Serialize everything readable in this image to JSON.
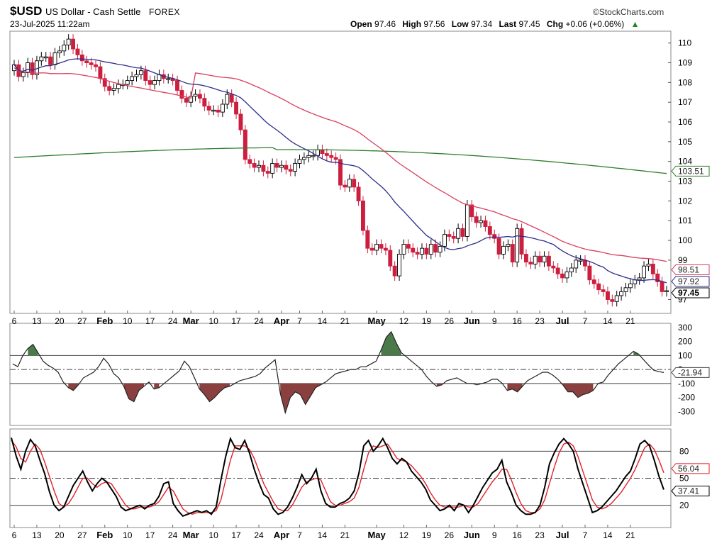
{
  "header": {
    "symbol": "$USD",
    "name": "US Dollar - Cash Settle",
    "exchange": "FOREX",
    "watermark": "©StockCharts.com",
    "datetime": "23-Jul-2025 11:22am",
    "ohlc": [
      {
        "label": "Open",
        "value": "97.46"
      },
      {
        "label": "High",
        "value": "97.56"
      },
      {
        "label": "Low",
        "value": "97.34"
      },
      {
        "label": "Last",
        "value": "97.45"
      },
      {
        "label": "Chg",
        "value": "+0.06 (+0.06%)"
      }
    ],
    "chg_arrow": "▲"
  },
  "colors": {
    "up_candle": "#ffffff",
    "down_candle": "#cc1f3f",
    "ma_fast": "#2d2d8a",
    "ma_mid": "#d9405f",
    "ma_slow": "#2e7d2e",
    "cci_line": "#222222",
    "cci_pos_fill": "#4a7a4a",
    "cci_neg_fill": "#8b4040",
    "stoch_k": "#000000",
    "stoch_d": "#e0202a"
  },
  "chart_data": [
    {
      "type": "candlestick",
      "panel": "price",
      "ylim": [
        96.3,
        110.6
      ],
      "y_ticks": [
        "110",
        "109",
        "108",
        "107",
        "106",
        "105",
        "104",
        "103",
        "102",
        "101",
        "100",
        "99",
        "97"
      ],
      "x_ticks": [
        "6",
        "13",
        "20",
        "27",
        "Feb",
        "10",
        "17",
        "24",
        "Mar",
        "10",
        "17",
        "24",
        "Apr",
        "7",
        "14",
        "21",
        "May",
        "12",
        "19",
        "26",
        "Jun",
        "9",
        "16",
        "23",
        "Jul",
        "7",
        "14",
        "21"
      ],
      "x_ticks_bold": [
        "Feb",
        "Mar",
        "Apr",
        "May",
        "Jun",
        "Jul"
      ],
      "tick_positions": [
        0,
        5,
        10,
        15,
        20,
        25,
        30,
        35,
        39,
        44,
        49,
        54,
        59,
        63,
        68,
        73,
        80,
        86,
        91,
        96,
        101,
        106,
        111,
        116,
        121,
        126,
        131,
        136
      ],
      "close": [
        108.9,
        108.3,
        108.5,
        109.0,
        108.4,
        109.1,
        109.3,
        109.3,
        108.9,
        109.5,
        109.6,
        109.9,
        110.2,
        109.7,
        109.4,
        109.1,
        109.0,
        108.9,
        108.8,
        108.2,
        107.8,
        107.6,
        107.7,
        107.9,
        107.9,
        108.1,
        108.3,
        108.4,
        108.6,
        108.1,
        107.9,
        108.1,
        108.4,
        108.2,
        108.2,
        108.1,
        107.6,
        107.2,
        107.0,
        107.3,
        107.4,
        107.2,
        106.8,
        106.6,
        106.6,
        106.5,
        106.9,
        107.4,
        107.0,
        106.4,
        105.6,
        104.1,
        103.9,
        103.7,
        103.8,
        103.5,
        103.4,
        103.9,
        103.7,
        103.8,
        103.6,
        103.5,
        103.9,
        104.1,
        104.2,
        104.3,
        104.3,
        104.6,
        104.4,
        104.3,
        104.2,
        104.1,
        102.8,
        102.7,
        103.1,
        102.7,
        102.0,
        100.5,
        99.6,
        99.5,
        99.8,
        99.6,
        99.5,
        98.7,
        98.2,
        99.3,
        99.8,
        99.6,
        99.4,
        99.3,
        99.6,
        99.3,
        99.8,
        99.4,
        99.7,
        100.3,
        100.2,
        100.1,
        100.6,
        100.2,
        101.8,
        101.2,
        100.9,
        101.0,
        100.7,
        100.3,
        100.1,
        99.3,
        99.7,
        99.8,
        98.9,
        100.6,
        99.3,
        98.9,
        98.8,
        99.2,
        98.9,
        99.2,
        98.7,
        98.6,
        98.3,
        98.1,
        98.4,
        98.6,
        99.0,
        99.0,
        98.7,
        98.0,
        97.8,
        97.5,
        97.4,
        97.0,
        96.9,
        97.2,
        97.4,
        97.6,
        97.8,
        98.0,
        98.1,
        98.7,
        98.8,
        98.3,
        97.9,
        97.4,
        97.45
      ],
      "ma_fast_last": "97.92",
      "ma_mid_last": "98.51",
      "ma_slow_last": "103.51",
      "last_label": "97.45"
    },
    {
      "type": "line",
      "panel": "cci",
      "ylim": [
        -400,
        330
      ],
      "y_ticks": [
        "300",
        "200",
        "100",
        "0",
        "-100",
        "-200",
        "-300"
      ],
      "ref_lines": [
        100,
        -100
      ],
      "dash_line": 0,
      "last_label": "-21.94",
      "values": [
        40,
        20,
        100,
        150,
        180,
        120,
        60,
        30,
        10,
        -20,
        -90,
        -130,
        -150,
        -110,
        -60,
        -40,
        -20,
        20,
        80,
        40,
        -30,
        -60,
        -120,
        -210,
        -230,
        -150,
        -120,
        -90,
        -140,
        -130,
        -100,
        -70,
        -40,
        -10,
        60,
        20,
        -60,
        -140,
        -180,
        -230,
        -200,
        -160,
        -130,
        -120,
        -100,
        -80,
        -70,
        -60,
        -50,
        -30,
        10,
        40,
        70,
        -170,
        -310,
        -200,
        -160,
        -180,
        -250,
        -190,
        -130,
        -110,
        -90,
        -60,
        -30,
        -20,
        -10,
        0,
        0,
        20,
        20,
        40,
        60,
        140,
        230,
        270,
        190,
        120,
        90,
        60,
        30,
        0,
        -50,
        -90,
        -120,
        -110,
        -80,
        -70,
        -60,
        -80,
        -100,
        -100,
        -110,
        -100,
        -90,
        -70,
        -70,
        -100,
        -150,
        -140,
        -160,
        -120,
        -80,
        -60,
        -40,
        -20,
        -20,
        -40,
        -70,
        -110,
        -160,
        -160,
        -200,
        -180,
        -170,
        -150,
        -100,
        -90,
        -40,
        0,
        40,
        70,
        100,
        130,
        110,
        70,
        30,
        -5,
        -15,
        -21.94
      ]
    },
    {
      "type": "line",
      "panel": "stochastic",
      "ylim": [
        0,
        100
      ],
      "y_ticks": [
        "80",
        "50",
        "20"
      ],
      "ref_lines": [
        80,
        20
      ],
      "dash_line": 50,
      "k_last": "37.41",
      "d_last": "56.04",
      "k": [
        95,
        75,
        60,
        80,
        93,
        86,
        70,
        55,
        35,
        20,
        14,
        18,
        30,
        42,
        50,
        58,
        46,
        36,
        44,
        50,
        46,
        38,
        30,
        18,
        14,
        16,
        18,
        20,
        16,
        20,
        22,
        30,
        44,
        46,
        22,
        14,
        8,
        10,
        12,
        14,
        12,
        14,
        10,
        18,
        48,
        74,
        94,
        84,
        82,
        92,
        78,
        60,
        45,
        32,
        28,
        16,
        10,
        12,
        18,
        28,
        40,
        54,
        44,
        50,
        60,
        36,
        22,
        18,
        18,
        22,
        24,
        28,
        36,
        56,
        86,
        92,
        80,
        86,
        94,
        84,
        72,
        66,
        72,
        68,
        58,
        52,
        46,
        38,
        26,
        20,
        14,
        16,
        20,
        14,
        22,
        20,
        12,
        20,
        30,
        40,
        48,
        56,
        60,
        70,
        46,
        34,
        20,
        14,
        10,
        10,
        12,
        20,
        40,
        66,
        78,
        88,
        94,
        88,
        80,
        60,
        44,
        28,
        12,
        14,
        18,
        24,
        30,
        36,
        44,
        52,
        58,
        72,
        88,
        92,
        86,
        70,
        52,
        37.41
      ],
      "d": [
        92,
        85,
        72,
        68,
        80,
        88,
        82,
        68,
        52,
        36,
        22,
        18,
        22,
        30,
        40,
        50,
        50,
        44,
        40,
        44,
        46,
        44,
        36,
        28,
        20,
        16,
        16,
        18,
        18,
        18,
        20,
        24,
        32,
        40,
        36,
        26,
        16,
        12,
        10,
        12,
        12,
        12,
        12,
        14,
        26,
        48,
        70,
        86,
        86,
        86,
        82,
        72,
        58,
        44,
        34,
        24,
        16,
        14,
        14,
        20,
        30,
        40,
        46,
        48,
        50,
        48,
        36,
        24,
        20,
        20,
        22,
        24,
        28,
        40,
        60,
        78,
        86,
        84,
        86,
        88,
        80,
        72,
        70,
        68,
        64,
        58,
        52,
        44,
        34,
        26,
        20,
        18,
        18,
        18,
        18,
        20,
        18,
        18,
        22,
        30,
        38,
        46,
        52,
        60,
        60,
        48,
        34,
        22,
        14,
        12,
        12,
        16,
        26,
        44,
        62,
        78,
        88,
        90,
        86,
        74,
        58,
        42,
        26,
        18,
        16,
        18,
        22,
        28,
        34,
        42,
        50,
        60,
        72,
        84,
        88,
        82,
        70,
        56.04
      ]
    }
  ]
}
